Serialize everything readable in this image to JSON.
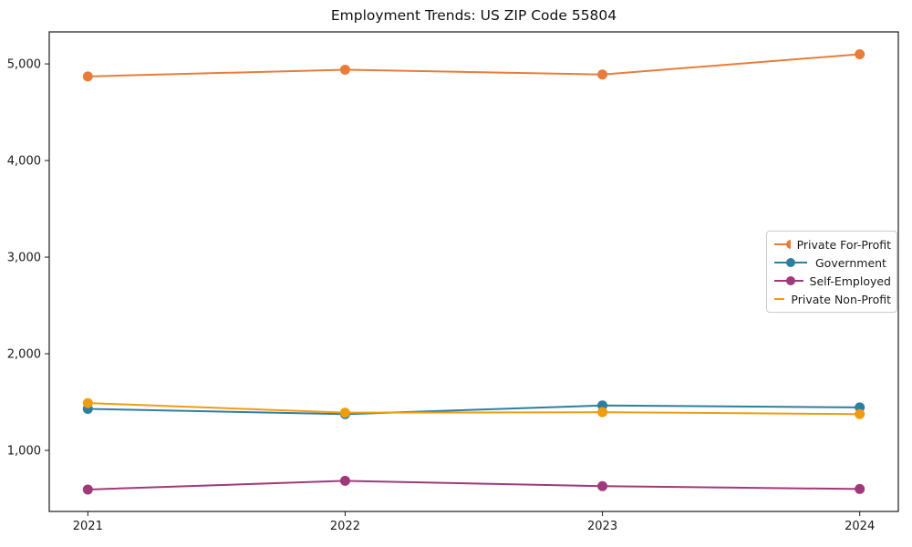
{
  "chart_data": {
    "type": "line",
    "title": "Employment Trends: US ZIP Code 55804",
    "xlabel": "",
    "ylabel": "",
    "categories": [
      2021,
      2022,
      2023,
      2024
    ],
    "series": [
      {
        "name": "Private For-Profit",
        "color": "#E87D3B",
        "values": [
          4870,
          4940,
          4890,
          5100
        ]
      },
      {
        "name": "Government",
        "color": "#2E7EA1",
        "values": [
          1430,
          1375,
          1465,
          1445
        ]
      },
      {
        "name": "Self-Employed",
        "color": "#A0397A",
        "values": [
          595,
          685,
          630,
          600
        ]
      },
      {
        "name": "Private Non-Profit",
        "color": "#EF9D0F",
        "values": [
          1490,
          1390,
          1395,
          1375
        ]
      }
    ],
    "xlim": [
      2020.85,
      2024.15
    ],
    "ylim": [
      368,
      5331
    ],
    "xticks": {
      "values": [
        2021,
        2022,
        2023,
        2024
      ],
      "labels": [
        "2021",
        "2022",
        "2023",
        "2024"
      ]
    },
    "yticks": {
      "values": [
        1000,
        2000,
        3000,
        4000,
        5000
      ],
      "labels": [
        "1,000",
        "2,000",
        "3,000",
        "4,000",
        "5,000"
      ]
    },
    "grid": false,
    "marker": "circle",
    "legend": {
      "position": "center right",
      "entries": [
        "Private For-Profit",
        "Government",
        "Self-Employed",
        "Private Non-Profit"
      ]
    }
  }
}
